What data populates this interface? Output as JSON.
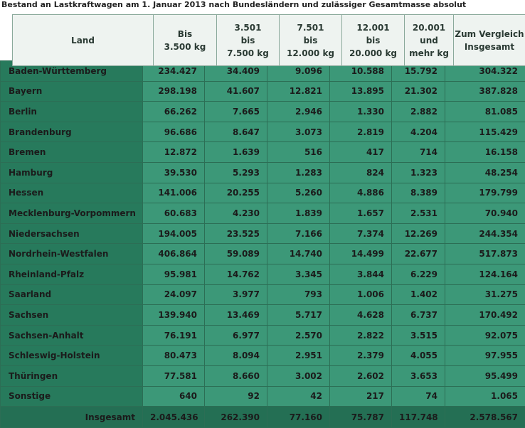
{
  "title": "Bestand an Lastkraftwagen am 1. Januar 2013 nach Bundesländern und zulässiger Gesamtmasse absolut",
  "table": {
    "header": [
      [
        "Land"
      ],
      [
        "Bis",
        "3.500 kg"
      ],
      [
        "3.501",
        "bis",
        "7.500 kg"
      ],
      [
        "7.501",
        "bis",
        "12.000 kg"
      ],
      [
        "12.001",
        "bis",
        "20.000 kg"
      ],
      [
        "20.001",
        "und",
        "mehr kg"
      ],
      [
        "Zum Vergleich",
        "Insgesamt"
      ]
    ],
    "rows": [
      [
        "Baden-Württemberg",
        "234.427",
        "34.409",
        "9.096",
        "10.588",
        "15.792",
        "304.322"
      ],
      [
        "Bayern",
        "298.198",
        "41.607",
        "12.821",
        "13.895",
        "21.302",
        "387.828"
      ],
      [
        "Berlin",
        "66.262",
        "7.665",
        "2.946",
        "1.330",
        "2.882",
        "81.085"
      ],
      [
        "Brandenburg",
        "96.686",
        "8.647",
        "3.073",
        "2.819",
        "4.204",
        "115.429"
      ],
      [
        "Bremen",
        "12.872",
        "1.639",
        "516",
        "417",
        "714",
        "16.158"
      ],
      [
        "Hamburg",
        "39.530",
        "5.293",
        "1.283",
        "824",
        "1.323",
        "48.254"
      ],
      [
        "Hessen",
        "141.006",
        "20.255",
        "5.260",
        "4.886",
        "8.389",
        "179.799"
      ],
      [
        "Mecklenburg-Vorpommern",
        "60.683",
        "4.230",
        "1.839",
        "1.657",
        "2.531",
        "70.940"
      ],
      [
        "Niedersachsen",
        "194.005",
        "23.525",
        "7.166",
        "7.374",
        "12.269",
        "244.354"
      ],
      [
        "Nordrhein-Westfalen",
        "406.864",
        "59.089",
        "14.740",
        "14.499",
        "22.677",
        "517.873"
      ],
      [
        "Rheinland-Pfalz",
        "95.981",
        "14.762",
        "3.345",
        "3.844",
        "6.229",
        "124.164"
      ],
      [
        "Saarland",
        "24.097",
        "3.977",
        "793",
        "1.006",
        "1.402",
        "31.275"
      ],
      [
        "Sachsen",
        "139.940",
        "13.469",
        "5.717",
        "4.628",
        "6.737",
        "170.492"
      ],
      [
        "Sachsen-Anhalt",
        "76.191",
        "6.977",
        "2.570",
        "2.822",
        "3.515",
        "92.075"
      ],
      [
        "Schleswig-Holstein",
        "80.473",
        "8.094",
        "2.951",
        "2.379",
        "4.055",
        "97.955"
      ],
      [
        "Thüringen",
        "77.581",
        "8.660",
        "3.002",
        "2.602",
        "3.653",
        "95.499"
      ],
      [
        "Sonstige",
        "640",
        "92",
        "42",
        "217",
        "74",
        "1.065"
      ]
    ],
    "total": [
      "Insgesamt",
      "2.045.436",
      "262.390",
      "77.160",
      "75.787",
      "117.748",
      "2.578.567"
    ]
  }
}
